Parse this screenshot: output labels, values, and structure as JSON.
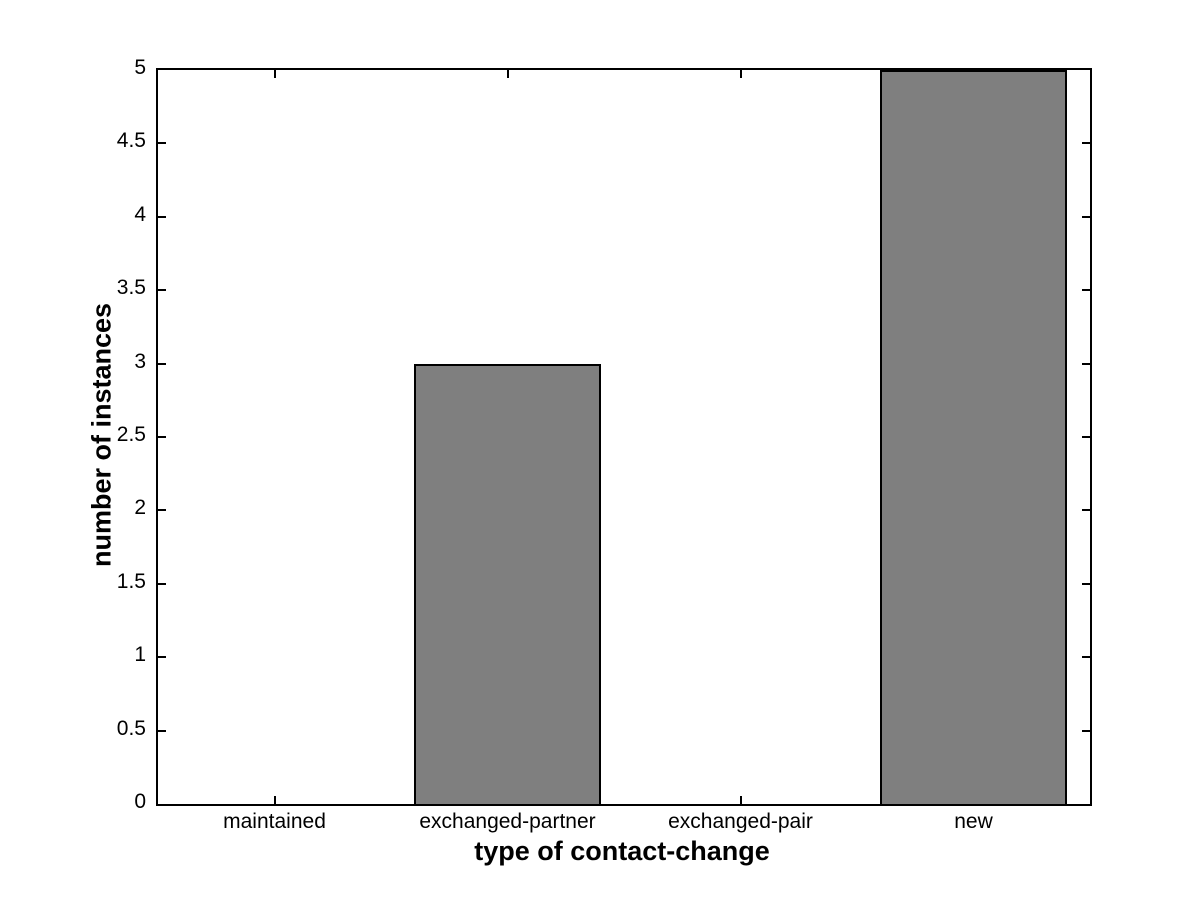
{
  "chart_data": {
    "type": "bar",
    "title": "",
    "xlabel": "type of contact-change",
    "ylabel": "number of instances",
    "categories": [
      "maintained",
      "exchanged-partner",
      "exchanged-pair",
      "new"
    ],
    "values": [
      0,
      3,
      0,
      5
    ],
    "ylim": [
      0,
      5
    ],
    "ytick_step": 0.5,
    "yticks": [
      "0",
      "0.5",
      "1",
      "1.5",
      "2",
      "2.5",
      "3",
      "3.5",
      "4",
      "4.5",
      "5"
    ],
    "bar_width_fraction": 0.8,
    "grid": false,
    "legend": "none",
    "colors": {
      "bar_fill": "#7f7f7f",
      "bar_edge": "#000000",
      "axis": "#000000",
      "background": "#ffffff",
      "text": "#000000"
    }
  }
}
